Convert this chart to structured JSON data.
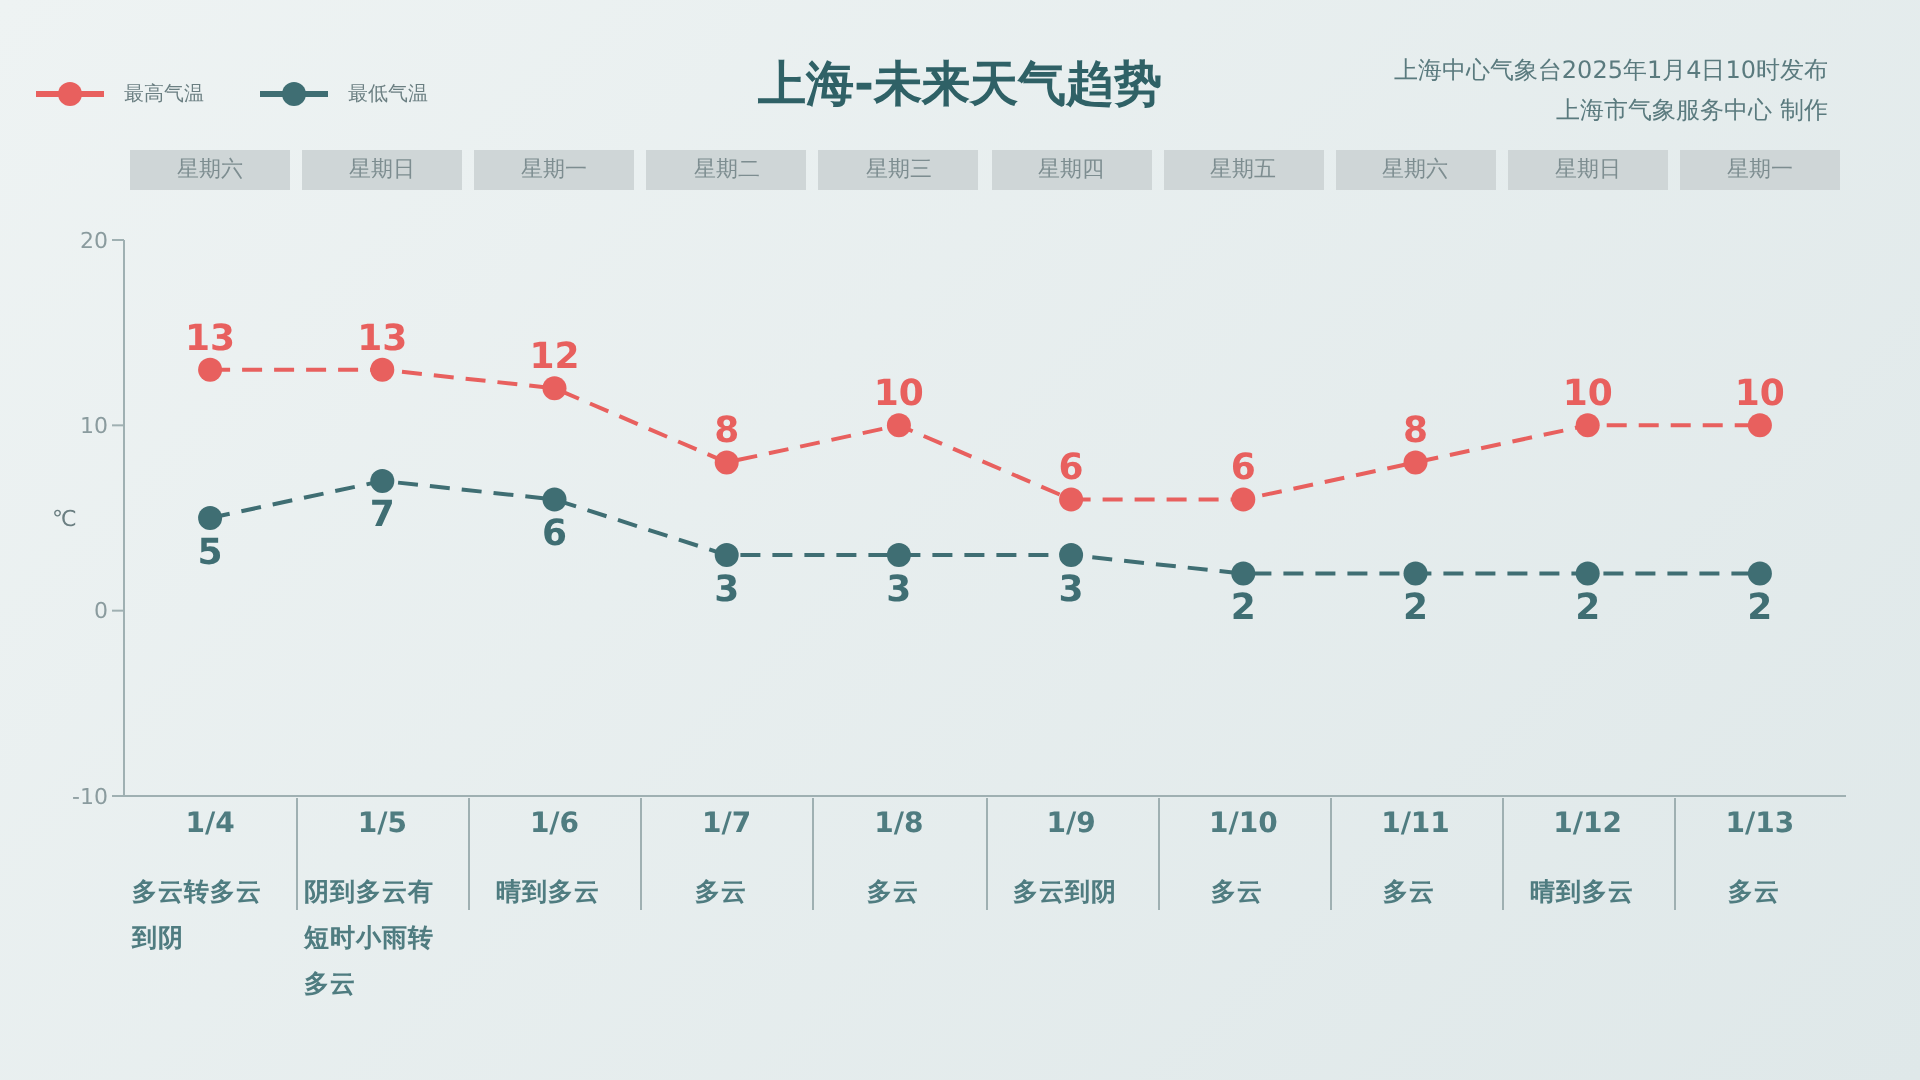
{
  "chart_data": {
    "type": "line",
    "title": "上海-未来天气趋势",
    "categories": [
      "1/4",
      "1/5",
      "1/6",
      "1/7",
      "1/8",
      "1/9",
      "1/10",
      "1/11",
      "1/12",
      "1/13"
    ],
    "series": [
      {
        "name": "最高气温",
        "color": "#e8605e",
        "values": [
          13,
          13,
          12,
          8,
          10,
          6,
          6,
          8,
          10,
          10
        ]
      },
      {
        "name": "最低气温",
        "color": "#3f6e73",
        "values": [
          5,
          7,
          6,
          3,
          3,
          3,
          2,
          2,
          2,
          2
        ]
      }
    ],
    "ylabel": "℃",
    "ylim": [
      -10,
      20
    ],
    "yticks": [
      -10,
      0,
      10,
      20
    ],
    "grid": false,
    "legend": "top left",
    "marker": "circle",
    "line_style": "dashed",
    "data_labels": true,
    "annotations": [
      "上海中心气象台2025年1月4日10时发布",
      "上海市气象服务中心 制作",
      "星期六",
      "星期日",
      "星期一",
      "星期二",
      "星期三",
      "星期四",
      "星期五",
      "星期六",
      "星期日",
      "星期一",
      "多云转多云到阴",
      "阴到多云有短时小雨转多云",
      "晴到多云",
      "多云",
      "多云",
      "多云到阴",
      "多云",
      "多云",
      "晴到多云",
      "多云"
    ]
  }
}
